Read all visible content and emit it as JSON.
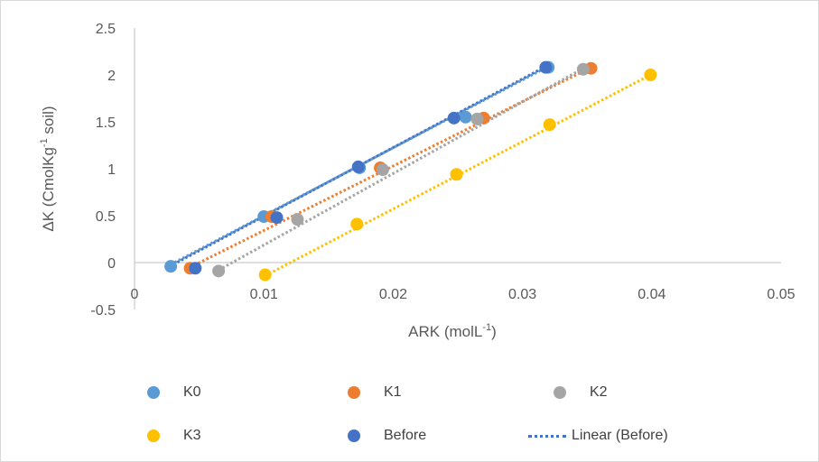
{
  "chart_data": {
    "type": "scatter",
    "xlabel": "ARK (molL",
    "xlabel_sup": "-1",
    "xlabel_end": ")",
    "ylabel": "ΔK (CmolKg",
    "ylabel_sup": "-1",
    "ylabel_end": " soil)",
    "xlim": [
      0,
      0.05
    ],
    "ylim": [
      -0.5,
      2.5
    ],
    "x_ticks": [
      "0",
      "0.01",
      "0.02",
      "0.03",
      "0.04",
      "0.05"
    ],
    "y_ticks": [
      "2.5",
      "2",
      "1.5",
      "1",
      "0.5",
      "0",
      "-0.5"
    ],
    "grid": false,
    "legend_position": "bottom",
    "series": [
      {
        "name": "K0",
        "color": "#5b9bd5",
        "x": [
          0.0028,
          0.01,
          0.0174,
          0.0256,
          0.032
        ],
        "y": [
          -0.04,
          0.49,
          1.01,
          1.55,
          2.08
        ],
        "trend": {
          "x0": 0.0028,
          "y0": -0.02,
          "x1": 0.032,
          "y1": 2.09
        }
      },
      {
        "name": "K1",
        "color": "#ed7d31",
        "x": [
          0.0043,
          0.0106,
          0.019,
          0.027,
          0.0353
        ],
        "y": [
          -0.06,
          0.49,
          1.01,
          1.54,
          2.07
        ],
        "trend": {
          "x0": 0.0043,
          "y0": -0.05,
          "x1": 0.0353,
          "y1": 2.08
        }
      },
      {
        "name": "K2",
        "color": "#a5a5a5",
        "x": [
          0.0065,
          0.0126,
          0.0192,
          0.0265,
          0.0347
        ],
        "y": [
          -0.09,
          0.46,
          0.99,
          1.53,
          2.06
        ],
        "trend": {
          "x0": 0.0065,
          "y0": -0.08,
          "x1": 0.0347,
          "y1": 2.07
        }
      },
      {
        "name": "K3",
        "color": "#ffc000",
        "x": [
          0.0101,
          0.0172,
          0.0249,
          0.0321,
          0.0399
        ],
        "y": [
          -0.13,
          0.41,
          0.94,
          1.47,
          2.0
        ],
        "trend": {
          "x0": 0.0101,
          "y0": -0.14,
          "x1": 0.0399,
          "y1": 2.0
        }
      },
      {
        "name": "Before",
        "color": "#4472c4",
        "x": [
          0.0047,
          0.011,
          0.0173,
          0.0247,
          0.0318
        ],
        "y": [
          -0.06,
          0.48,
          1.02,
          1.54,
          2.08
        ],
        "trend": {
          "x0": 0.003,
          "y0": -0.02,
          "x1": 0.0318,
          "y1": 2.09
        }
      }
    ],
    "legend_entries": [
      "K0",
      "K1",
      "K2",
      "K3",
      "Before",
      "Linear (Before)"
    ]
  }
}
